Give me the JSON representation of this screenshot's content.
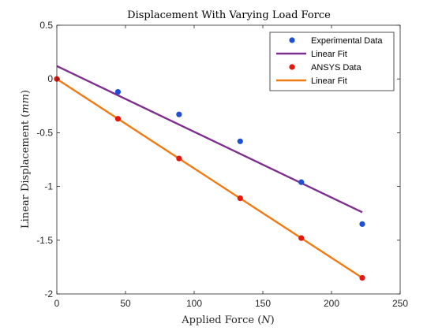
{
  "chart_data": {
    "type": "scatter",
    "title": "Displacement With Varying Load Force",
    "xlabel": {
      "text": "Applied Force (",
      "var": "N",
      "close": ")"
    },
    "ylabel": {
      "text": "Linear Displacement (",
      "var": "mm",
      "close": ")"
    },
    "xlim": [
      0,
      250
    ],
    "ylim": [
      -2,
      0.5
    ],
    "xticks": [
      0,
      50,
      100,
      150,
      200,
      250
    ],
    "yticks": [
      -2,
      -1.5,
      -1,
      -0.5,
      0,
      0.5
    ],
    "xtick_labels": [
      "0",
      "50",
      "100",
      "150",
      "200",
      "250"
    ],
    "ytick_labels": [
      "-2",
      "-1.5",
      "-1",
      "-0.5",
      "0",
      "0.5"
    ],
    "grid": false,
    "legend_position": "top-right",
    "series": [
      {
        "name": "Experimental Data",
        "kind": "scatter",
        "color": "#1f4fd6",
        "x": [
          44.5,
          89,
          133.5,
          178,
          222.4
        ],
        "y": [
          -0.12,
          -0.33,
          -0.58,
          -0.96,
          -1.35
        ]
      },
      {
        "name": "Linear Fit",
        "kind": "line",
        "color": "#7e2f8e",
        "x": [
          0,
          222.4
        ],
        "y": [
          0.12,
          -1.24
        ]
      },
      {
        "name": "ANSYS Data",
        "kind": "scatter",
        "color": "#e8150c",
        "x": [
          0,
          44.5,
          89,
          133.5,
          178,
          222.4
        ],
        "y": [
          0,
          -0.37,
          -0.74,
          -1.11,
          -1.48,
          -1.85
        ]
      },
      {
        "name": "Linear Fit",
        "kind": "line",
        "color": "#f07a13",
        "x": [
          0,
          222.4
        ],
        "y": [
          0,
          -1.85
        ]
      }
    ]
  }
}
